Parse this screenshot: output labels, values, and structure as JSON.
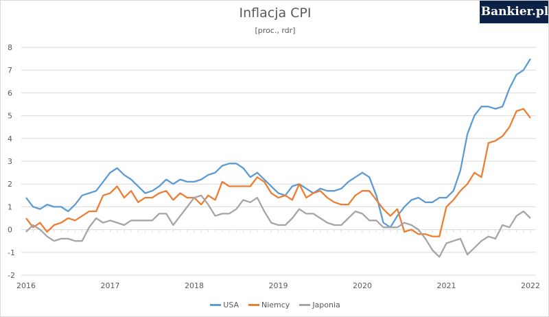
{
  "logo": "Bankier.pl",
  "chart_data": {
    "type": "line",
    "title": "Inflacja CPI",
    "subtitle": "[proc., rdr]",
    "x_start": "2016-01",
    "frequency": "monthly",
    "x_ticks": [
      "2016",
      "2017",
      "2018",
      "2019",
      "2020",
      "2021",
      "2022"
    ],
    "y_ticks": [
      "-2",
      "-1",
      "0",
      "1",
      "2",
      "3",
      "4",
      "5",
      "6",
      "7",
      "8"
    ],
    "ylim": [
      -2,
      8
    ],
    "grid": true,
    "legend": "bottom",
    "series": [
      {
        "name": "USA",
        "color": "#5b9bd5",
        "values": [
          1.4,
          1.0,
          0.9,
          1.1,
          1.0,
          1.0,
          0.8,
          1.1,
          1.5,
          1.6,
          1.7,
          2.1,
          2.5,
          2.7,
          2.4,
          2.2,
          1.9,
          1.6,
          1.7,
          1.9,
          2.2,
          2.0,
          2.2,
          2.1,
          2.1,
          2.2,
          2.4,
          2.5,
          2.8,
          2.9,
          2.9,
          2.7,
          2.3,
          2.5,
          2.2,
          1.9,
          1.6,
          1.5,
          1.9,
          2.0,
          1.8,
          1.6,
          1.8,
          1.7,
          1.7,
          1.8,
          2.1,
          2.3,
          2.5,
          2.3,
          1.5,
          0.3,
          0.1,
          0.6,
          1.0,
          1.3,
          1.4,
          1.2,
          1.2,
          1.4,
          1.4,
          1.7,
          2.6,
          4.2,
          5.0,
          5.4,
          5.4,
          5.3,
          5.4,
          6.2,
          6.8,
          7.0,
          7.5
        ]
      },
      {
        "name": "Niemcy",
        "color": "#ed7d31",
        "values": [
          0.5,
          0.1,
          0.3,
          -0.1,
          0.2,
          0.3,
          0.5,
          0.4,
          0.6,
          0.8,
          0.8,
          1.5,
          1.6,
          1.9,
          1.4,
          1.7,
          1.2,
          1.4,
          1.4,
          1.6,
          1.7,
          1.3,
          1.6,
          1.4,
          1.4,
          1.1,
          1.5,
          1.3,
          2.1,
          1.9,
          1.9,
          1.9,
          1.9,
          2.3,
          2.1,
          1.6,
          1.4,
          1.5,
          1.3,
          2.0,
          1.4,
          1.6,
          1.7,
          1.4,
          1.2,
          1.1,
          1.1,
          1.5,
          1.7,
          1.7,
          1.3,
          0.9,
          0.6,
          0.9,
          -0.1,
          0.0,
          -0.2,
          -0.2,
          -0.3,
          -0.3,
          1.0,
          1.3,
          1.7,
          2.0,
          2.5,
          2.3,
          3.8,
          3.9,
          4.1,
          4.5,
          5.2,
          5.3,
          4.9
        ]
      },
      {
        "name": "Japonia",
        "color": "#a5a5a5",
        "values": [
          -0.1,
          0.2,
          0.0,
          -0.3,
          -0.5,
          -0.4,
          -0.4,
          -0.5,
          -0.5,
          0.1,
          0.5,
          0.3,
          0.4,
          0.3,
          0.2,
          0.4,
          0.4,
          0.4,
          0.4,
          0.7,
          0.7,
          0.2,
          0.6,
          1.0,
          1.4,
          1.5,
          1.1,
          0.6,
          0.7,
          0.7,
          0.9,
          1.3,
          1.2,
          1.4,
          0.8,
          0.3,
          0.2,
          0.2,
          0.5,
          0.9,
          0.7,
          0.7,
          0.5,
          0.3,
          0.2,
          0.2,
          0.5,
          0.8,
          0.7,
          0.4,
          0.4,
          0.1,
          0.1,
          0.1,
          0.3,
          0.2,
          0.0,
          -0.4,
          -0.9,
          -1.2,
          -0.6,
          -0.5,
          -0.4,
          -1.1,
          -0.8,
          -0.5,
          -0.3,
          -0.4,
          0.2,
          0.1,
          0.6,
          0.8,
          0.5
        ]
      }
    ]
  }
}
